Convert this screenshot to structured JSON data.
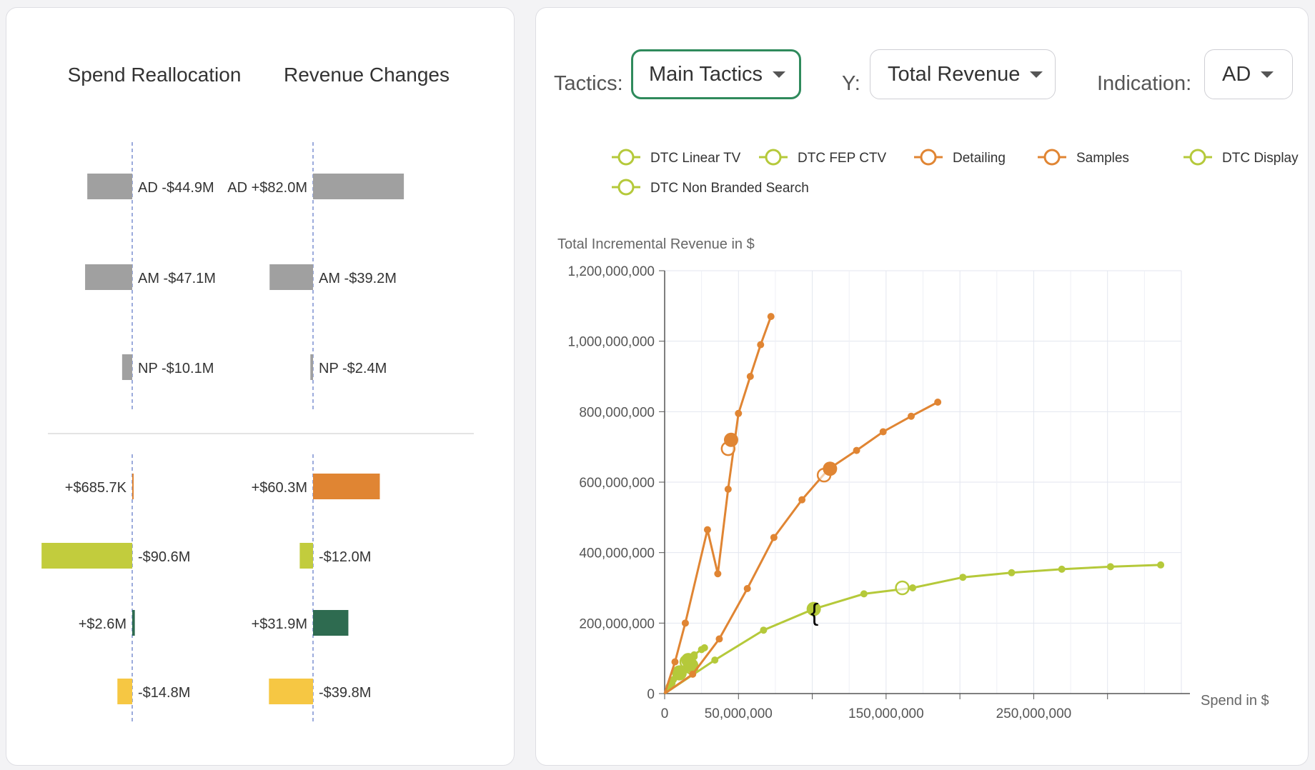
{
  "left_panel": {
    "spend_title": "Spend Reallocation",
    "revenue_title": "Revenue Changes",
    "indication_rows": [
      {
        "spend_label": "AD -$44.9M",
        "spend_value": -44.9,
        "revenue_label": "AD +$82.0M",
        "revenue_value": 82.0
      },
      {
        "spend_label": "AM -$47.1M",
        "spend_value": -47.1,
        "revenue_label": "AM -$39.2M",
        "revenue_value": -39.2
      },
      {
        "spend_label": "NP -$10.1M",
        "spend_value": -10.1,
        "revenue_label": "NP -$2.4M",
        "revenue_value": -2.4
      }
    ],
    "tactic_rows": [
      {
        "color": "#e08533",
        "spend_label": "+$685.7K",
        "spend_value": 0.6857,
        "revenue_label": "+$60.3M",
        "revenue_value": 60.3
      },
      {
        "color": "#c2cc3d",
        "spend_label": "-$90.6M",
        "spend_value": -90.6,
        "revenue_label": "-$12.0M",
        "revenue_value": -12.0
      },
      {
        "color": "#2e6b50",
        "spend_label": "+$2.6M",
        "spend_value": 2.6,
        "revenue_label": "+$31.9M",
        "revenue_value": 31.9
      },
      {
        "color": "#f6c743",
        "spend_label": "-$14.8M",
        "spend_value": -14.8,
        "revenue_label": "-$39.8M",
        "revenue_value": -39.8
      }
    ],
    "colors": {
      "indication_bar": "#a0a0a0",
      "axis": "#7b8fd0"
    }
  },
  "controls": {
    "tactics_label": "Tactics:",
    "tactics_value": "Main Tactics",
    "y_label": "Y:",
    "y_value": "Total Revenue",
    "indication_label": "Indication:",
    "indication_value": "AD"
  },
  "chart_data": {
    "type": "line",
    "ylabel": "Total Incremental Revenue in $",
    "xlabel": "Spend in $",
    "xlim": [
      0,
      350000000
    ],
    "ylim": [
      0,
      1200000000
    ],
    "y_ticks": [
      {
        "value": 0,
        "label": "0"
      },
      {
        "value": 200000000,
        "label": "200,000,000"
      },
      {
        "value": 400000000,
        "label": "400,000,000"
      },
      {
        "value": 600000000,
        "label": "600,000,000"
      },
      {
        "value": 800000000,
        "label": "800,000,000"
      },
      {
        "value": 1000000000,
        "label": "1,000,000,000"
      },
      {
        "value": 1200000000,
        "label": "1,200,000,000"
      }
    ],
    "x_ticks": [
      {
        "value": 0,
        "label": "0"
      },
      {
        "value": 50000000,
        "label": "50,000,000"
      },
      {
        "value": 100000000,
        "label": ""
      },
      {
        "value": 150000000,
        "label": "150,000,000"
      },
      {
        "value": 200000000,
        "label": ""
      },
      {
        "value": 250000000,
        "label": "250,000,000"
      },
      {
        "value": 300000000,
        "label": ""
      }
    ],
    "grid": true,
    "legend_position": "top",
    "series": [
      {
        "name": "DTC Linear TV",
        "color": "#b5c93a",
        "points": [
          [
            0,
            0
          ],
          [
            34000000,
            95000000
          ],
          [
            67000000,
            180000000
          ],
          [
            101000000,
            240000000
          ],
          [
            135000000,
            283000000
          ],
          [
            168000000,
            300000000
          ],
          [
            202000000,
            330000000
          ],
          [
            235000000,
            343000000
          ],
          [
            269000000,
            353000000
          ],
          [
            302000000,
            360000000
          ],
          [
            336000000,
            365000000
          ]
        ],
        "current": [
          101000000,
          240000000
        ],
        "optimal": [
          161000000,
          300000000
        ]
      },
      {
        "name": "DTC FEP CTV",
        "color": "#b5c93a",
        "points": [
          [
            0,
            0
          ],
          [
            5000000,
            30000000
          ],
          [
            10000000,
            60000000
          ],
          [
            15000000,
            90000000
          ],
          [
            20000000,
            110000000
          ],
          [
            25000000,
            125000000
          ],
          [
            27000000,
            130000000
          ]
        ],
        "current": [
          18000000,
          80000000
        ],
        "optimal": [
          18000000,
          75000000
        ]
      },
      {
        "name": "Detailing",
        "color": "#e08533",
        "points": [
          [
            0,
            0
          ],
          [
            7000000,
            90000000
          ],
          [
            14000000,
            200000000
          ],
          [
            29000000,
            465000000
          ],
          [
            36000000,
            340000000
          ],
          [
            43000000,
            580000000
          ],
          [
            50000000,
            795000000
          ],
          [
            58000000,
            900000000
          ],
          [
            65000000,
            990000000
          ],
          [
            72000000,
            1070000000
          ]
        ],
        "current": [
          45000000,
          720000000
        ],
        "optimal": [
          43000000,
          695000000
        ]
      },
      {
        "name": "Samples",
        "color": "#e08533",
        "points": [
          [
            0,
            0
          ],
          [
            19000000,
            55000000
          ],
          [
            37000000,
            155000000
          ],
          [
            56000000,
            298000000
          ],
          [
            74000000,
            443000000
          ],
          [
            93000000,
            550000000
          ],
          [
            111000000,
            637000000
          ],
          [
            130000000,
            690000000
          ],
          [
            148000000,
            743000000
          ],
          [
            167000000,
            787000000
          ],
          [
            185000000,
            827000000
          ]
        ],
        "current": [
          112000000,
          638000000
        ],
        "optimal": [
          108000000,
          620000000
        ]
      },
      {
        "name": "DTC Display",
        "color": "#b5c93a",
        "points": [
          [
            0,
            0
          ],
          [
            4000000,
            25000000
          ],
          [
            8000000,
            50000000
          ],
          [
            12000000,
            70000000
          ],
          [
            16000000,
            90000000
          ],
          [
            20000000,
            105000000
          ]
        ],
        "current": [
          16000000,
          95000000
        ],
        "optimal": [
          15000000,
          90000000
        ]
      },
      {
        "name": "DTC Non Branded Search",
        "color": "#b5c93a",
        "points": [
          [
            0,
            0
          ],
          [
            3000000,
            20000000
          ],
          [
            6000000,
            40000000
          ],
          [
            9000000,
            55000000
          ],
          [
            12000000,
            70000000
          ]
        ],
        "current": [
          10000000,
          60000000
        ],
        "optimal": [
          10000000,
          58000000
        ]
      }
    ]
  }
}
